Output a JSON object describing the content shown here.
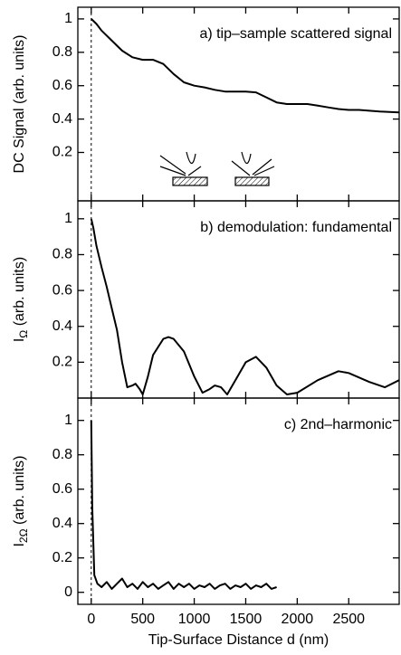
{
  "chart_data": [
    {
      "type": "line",
      "title": "a)  tip–sample scattered signal",
      "ylabel": "DC Signal (arb. units)",
      "color": "#000000",
      "x": [
        0,
        50,
        100,
        200,
        300,
        400,
        500,
        600,
        700,
        800,
        900,
        1000,
        1100,
        1200,
        1300,
        1400,
        1500,
        1600,
        1700,
        1800,
        1900,
        2000,
        2100,
        2200,
        2300,
        2400,
        2500,
        2600,
        2700,
        2800,
        2990
      ],
      "values": [
        1.0,
        0.97,
        0.93,
        0.87,
        0.81,
        0.77,
        0.755,
        0.755,
        0.73,
        0.67,
        0.62,
        0.6,
        0.59,
        0.575,
        0.565,
        0.565,
        0.565,
        0.56,
        0.53,
        0.5,
        0.49,
        0.49,
        0.49,
        0.48,
        0.47,
        0.46,
        0.455,
        0.455,
        0.45,
        0.445,
        0.44
      ],
      "xlim": [
        -130,
        2990
      ],
      "ylim": [
        -0.09,
        1.07
      ],
      "xticks": [
        0,
        500,
        1000,
        1500,
        2000,
        2500
      ],
      "yticks": [
        0.2,
        0.4,
        0.6,
        0.8,
        1.0
      ],
      "show_xtick_labels": false,
      "reference_line_x": 0
    },
    {
      "type": "line",
      "title": "b)  demodulation: fundamental",
      "ylabel": [
        "I",
        "Ω",
        " (arb. units)"
      ],
      "color": "#000000",
      "x": [
        0,
        20,
        50,
        100,
        150,
        200,
        250,
        300,
        350,
        400,
        430,
        470,
        500,
        550,
        600,
        700,
        750,
        800,
        900,
        1000,
        1080,
        1150,
        1200,
        1260,
        1320,
        1400,
        1500,
        1600,
        1700,
        1800,
        1900,
        2000,
        2200,
        2400,
        2500,
        2700,
        2850,
        2990
      ],
      "values": [
        1.0,
        0.95,
        0.85,
        0.73,
        0.62,
        0.5,
        0.38,
        0.2,
        0.06,
        0.07,
        0.08,
        0.05,
        0.02,
        0.12,
        0.24,
        0.33,
        0.34,
        0.33,
        0.26,
        0.12,
        0.03,
        0.05,
        0.07,
        0.06,
        0.02,
        0.1,
        0.2,
        0.23,
        0.17,
        0.07,
        0.02,
        0.03,
        0.1,
        0.15,
        0.14,
        0.09,
        0.06,
        0.1
      ],
      "xlim": [
        -130,
        2990
      ],
      "ylim": [
        0,
        1.1
      ],
      "xticks": [
        0,
        500,
        1000,
        1500,
        2000,
        2500
      ],
      "yticks": [
        0.2,
        0.4,
        0.6,
        0.8,
        1.0
      ],
      "show_xtick_labels": false,
      "reference_line_x": 0
    },
    {
      "type": "line",
      "title": "c)  2nd–harmonic",
      "ylabel": [
        "I",
        "2Ω",
        " (arb. units)"
      ],
      "xlabel": "Tip-Surface Distance d (nm)",
      "color": "#000000",
      "x": [
        0,
        10,
        30,
        60,
        100,
        150,
        200,
        250,
        300,
        350,
        400,
        450,
        500,
        550,
        600,
        650,
        700,
        750,
        800,
        850,
        900,
        950,
        1000,
        1050,
        1100,
        1150,
        1200,
        1250,
        1300,
        1350,
        1400,
        1450,
        1500,
        1550,
        1600,
        1650,
        1700,
        1750,
        1800
      ],
      "values": [
        1.0,
        0.5,
        0.1,
        0.05,
        0.03,
        0.06,
        0.02,
        0.05,
        0.08,
        0.03,
        0.05,
        0.02,
        0.06,
        0.03,
        0.05,
        0.02,
        0.04,
        0.06,
        0.02,
        0.05,
        0.03,
        0.05,
        0.02,
        0.04,
        0.03,
        0.05,
        0.02,
        0.04,
        0.05,
        0.02,
        0.04,
        0.03,
        0.05,
        0.02,
        0.04,
        0.03,
        0.05,
        0.02,
        0.03
      ],
      "xlim": [
        -130,
        2990
      ],
      "ylim": [
        -0.07,
        1.13
      ],
      "xticks": [
        0,
        500,
        1000,
        1500,
        2000,
        2500
      ],
      "yticks": [
        0.0,
        0.2,
        0.4,
        0.6,
        0.8,
        1.0
      ],
      "show_xtick_labels": true,
      "reference_line_x": 0
    }
  ]
}
